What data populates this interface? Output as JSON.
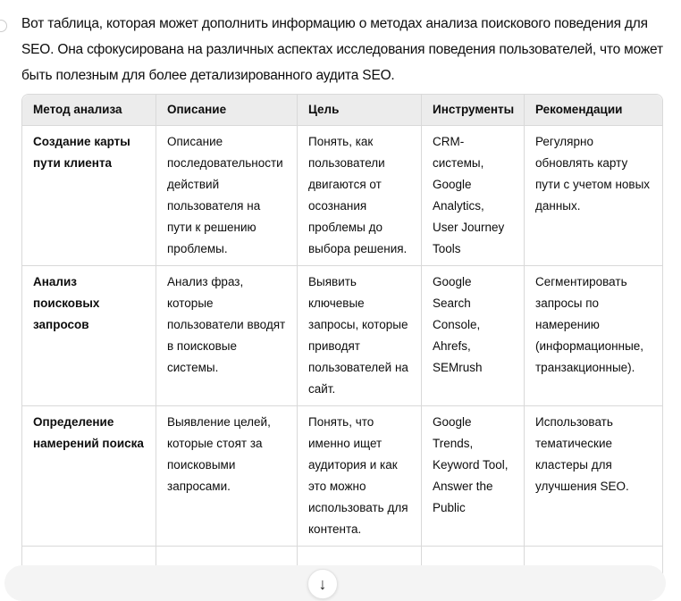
{
  "intro": "Вот таблица, которая может дополнить информацию о методах анализа поискового поведения для SEO. Она сфокусирована на различных аспектах исследования поведения пользователей, что может быть полезным для более детализированного аудита SEO.",
  "table": {
    "headers": [
      "Метод анализа",
      "Описание",
      "Цель",
      "Инструменты",
      "Рекомендации"
    ],
    "rows": [
      [
        "Создание карты пути клиента",
        "Описание последовательности действий пользователя на пути к решению проблемы.",
        "Понять, как пользователи двигаются от осознания проблемы до выбора решения.",
        "CRM-системы, Google Analytics, User Journey Tools",
        "Регулярно обновлять карту пути с учетом новых данных."
      ],
      [
        "Анализ поисковых запросов",
        "Анализ фраз, которые пользователи вводят в поисковые системы.",
        "Выявить ключевые запросы, которые приводят пользователей на сайт.",
        "Google Search Console, Ahrefs, SEMrush",
        "Сегментировать запросы по намерению (информационные, транзакционные)."
      ],
      [
        "Определение намерений поиска",
        "Выявление целей, которые стоят за поисковыми запросами.",
        "Понять, что именно ищет аудитория и как это можно использовать для контента.",
        "Google Trends, Keyword Tool, Answer the Public",
        "Использовать тематические кластеры для улучшения SEO."
      ]
    ]
  },
  "scroll_button": {
    "icon": "arrow-down-icon",
    "glyph": "↓"
  }
}
